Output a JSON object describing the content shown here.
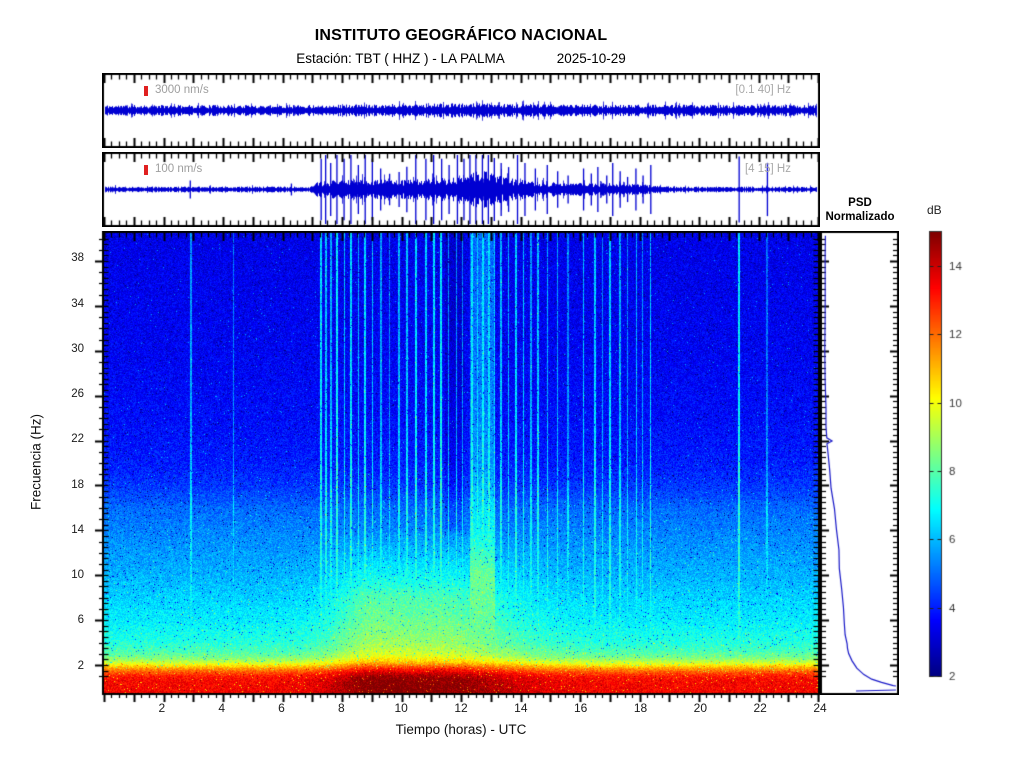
{
  "header": {
    "title": "INSTITUTO GEOGRÁFICO NACIONAL",
    "station": "Estación:  TBT ( HHZ ) - LA PALMA",
    "date": "2025-10-29"
  },
  "colors": {
    "trace_blue": "#0000d2",
    "marker_red": "#e02020",
    "axis_black": "#000000",
    "label_gray": "#9e9e9e",
    "tick_label": "#3a3a3a"
  },
  "chart_data": [
    {
      "id": "trace_broadband",
      "type": "line",
      "kind": "seismogram",
      "scale_label": "3000 nm/s",
      "filter_label": "[0.1 40] Hz",
      "x_range_hours": [
        0,
        24
      ],
      "envelope": [
        [
          0,
          0.13
        ],
        [
          7,
          0.135
        ],
        [
          9,
          0.15
        ],
        [
          11,
          0.17
        ],
        [
          13,
          0.17
        ],
        [
          14.5,
          0.15
        ],
        [
          18,
          0.14
        ],
        [
          24,
          0.13
        ]
      ],
      "spikes": []
    },
    {
      "id": "trace_filtered",
      "type": "line",
      "kind": "seismogram",
      "scale_label": "100 nm/s",
      "filter_label": "[4 15] Hz",
      "x_range_hours": [
        0,
        24
      ],
      "envelope": [
        [
          0,
          0.07
        ],
        [
          6.9,
          0.07
        ],
        [
          7.15,
          0.18
        ],
        [
          8,
          0.24
        ],
        [
          9,
          0.26
        ],
        [
          9.7,
          0.21
        ],
        [
          10.4,
          0.24
        ],
        [
          11,
          0.26
        ],
        [
          11.9,
          0.3
        ],
        [
          12.2,
          0.38
        ],
        [
          12.5,
          0.44
        ],
        [
          12.9,
          0.44
        ],
        [
          13.2,
          0.35
        ],
        [
          13.6,
          0.27
        ],
        [
          14.1,
          0.23
        ],
        [
          14.7,
          0.19
        ],
        [
          15.4,
          0.16
        ],
        [
          16.2,
          0.15
        ],
        [
          17,
          0.16
        ],
        [
          18,
          0.13
        ],
        [
          18.6,
          0.09
        ],
        [
          19.2,
          0.07
        ],
        [
          24,
          0.065
        ]
      ],
      "spikes": [
        [
          2.9,
          0.26
        ],
        [
          6.3,
          0.17
        ],
        [
          7.3,
          0.88
        ],
        [
          7.45,
          1
        ],
        [
          7.62,
          0.76
        ],
        [
          7.83,
          1
        ],
        [
          8.07,
          0.88
        ],
        [
          8.3,
          1
        ],
        [
          8.55,
          0.7
        ],
        [
          8.78,
          1
        ],
        [
          9.02,
          0.88
        ],
        [
          9.3,
          0.6
        ],
        [
          9.6,
          0.45
        ],
        [
          9.92,
          0.5
        ],
        [
          10.18,
          0.65
        ],
        [
          10.48,
          1
        ],
        [
          10.82,
          0.88
        ],
        [
          11.08,
          1
        ],
        [
          11.35,
          0.88
        ],
        [
          11.6,
          0.7
        ],
        [
          11.88,
          1
        ],
        [
          12.1,
          0.88
        ],
        [
          12.3,
          1
        ],
        [
          12.5,
          1
        ],
        [
          12.72,
          1
        ],
        [
          12.92,
          1
        ],
        [
          13.12,
          0.9
        ],
        [
          13.35,
          0.76
        ],
        [
          13.6,
          0.64
        ],
        [
          13.9,
          1
        ],
        [
          14.15,
          0.76
        ],
        [
          14.5,
          0.6
        ],
        [
          14.9,
          0.7
        ],
        [
          15.25,
          0.52
        ],
        [
          15.6,
          0.4
        ],
        [
          16.12,
          0.6
        ],
        [
          16.38,
          0.46
        ],
        [
          16.6,
          0.64
        ],
        [
          16.9,
          0.4
        ],
        [
          17.1,
          0.76
        ],
        [
          17.35,
          0.52
        ],
        [
          17.6,
          0.36
        ],
        [
          17.88,
          0.6
        ],
        [
          18.12,
          0.4
        ],
        [
          18.38,
          0.7
        ],
        [
          21.35,
          0.94
        ],
        [
          22.3,
          0.76
        ]
      ]
    },
    {
      "id": "spectrogram",
      "type": "heatmap",
      "xlabel": "Tiempo (horas) - UTC",
      "ylabel": "Frecuencia  (Hz)",
      "x_min": 0,
      "x_max": 24,
      "x_ticks": [
        2,
        4,
        6,
        8,
        10,
        12,
        14,
        16,
        18,
        20,
        22,
        24
      ],
      "y_min": -0.5,
      "y_max": 40.5,
      "y_ticks": [
        2,
        6,
        10,
        14,
        18,
        22,
        26,
        30,
        34,
        38
      ],
      "colorbar": {
        "unit": "dB",
        "min": 2,
        "max": 15,
        "ticks": [
          2,
          4,
          6,
          8,
          10,
          12,
          14
        ]
      },
      "background_db_vs_freq": [
        [
          0.2,
          13.4
        ],
        [
          0.7,
          13.3
        ],
        [
          1.0,
          13.0
        ],
        [
          1.3,
          12.4
        ],
        [
          1.6,
          11.6
        ],
        [
          1.9,
          10.6
        ],
        [
          2.1,
          9.8
        ],
        [
          2.4,
          9.0
        ],
        [
          2.8,
          8.2
        ],
        [
          3.2,
          7.8
        ],
        [
          4,
          7.3
        ],
        [
          5,
          7.0
        ],
        [
          6,
          6.7
        ],
        [
          8,
          6.3
        ],
        [
          10,
          5.9
        ],
        [
          12,
          5.6
        ],
        [
          14,
          5.3
        ],
        [
          16,
          4.95
        ],
        [
          17,
          4.6
        ],
        [
          18,
          4.3
        ],
        [
          20,
          3.95
        ],
        [
          24,
          3.7
        ],
        [
          30,
          3.5
        ],
        [
          36,
          3.4
        ],
        [
          40,
          3.35
        ]
      ],
      "event_streaks": [
        [
          2.9,
          0.06,
          2.2,
          6.8
        ],
        [
          4.35,
          0.05,
          1.8,
          6.5
        ],
        [
          7.28,
          0.06,
          3.0,
          7.2
        ],
        [
          7.45,
          0.05,
          2.6,
          7.2
        ],
        [
          7.62,
          0.05,
          2.4,
          7.0
        ],
        [
          7.83,
          0.07,
          3.2,
          7.4
        ],
        [
          8.07,
          0.05,
          2.6,
          7.1
        ],
        [
          8.3,
          0.07,
          3.0,
          7.3
        ],
        [
          8.55,
          0.05,
          2.4,
          7.0
        ],
        [
          8.78,
          0.07,
          3.0,
          7.3
        ],
        [
          9.02,
          0.05,
          2.6,
          7.1
        ],
        [
          9.3,
          0.05,
          2.2,
          6.9
        ],
        [
          9.6,
          0.04,
          1.8,
          6.6
        ],
        [
          9.92,
          0.05,
          2.4,
          7.0
        ],
        [
          10.18,
          0.05,
          2.6,
          7.1
        ],
        [
          10.48,
          0.06,
          3.0,
          7.3
        ],
        [
          10.82,
          0.06,
          2.8,
          7.2
        ],
        [
          11.08,
          0.06,
          3.0,
          7.3
        ],
        [
          11.32,
          0.07,
          3.2,
          7.4
        ],
        [
          11.58,
          0.05,
          2.4,
          7.0
        ],
        [
          11.85,
          0.05,
          2.6,
          7.1
        ],
        [
          12.05,
          0.05,
          2.4,
          7.0
        ],
        [
          12.38,
          0.06,
          3.2,
          7.5
        ],
        [
          12.55,
          0.05,
          2.8,
          7.3
        ],
        [
          12.75,
          0.06,
          3.2,
          7.5
        ],
        [
          12.95,
          0.05,
          3.0,
          7.4
        ],
        [
          13.12,
          0.05,
          2.8,
          7.3
        ],
        [
          13.35,
          0.05,
          2.6,
          7.1
        ],
        [
          13.6,
          0.05,
          2.4,
          7.0
        ],
        [
          13.85,
          0.06,
          2.8,
          7.2
        ],
        [
          14.1,
          0.05,
          2.6,
          7.1
        ],
        [
          14.35,
          0.05,
          2.2,
          6.9
        ],
        [
          14.6,
          0.05,
          2.6,
          7.1
        ],
        [
          14.92,
          0.05,
          2.4,
          7.0
        ],
        [
          15.25,
          0.05,
          2.2,
          6.9
        ],
        [
          15.6,
          0.04,
          1.8,
          6.7
        ],
        [
          16.12,
          0.05,
          2.6,
          7.1
        ],
        [
          16.5,
          0.06,
          2.8,
          7.2
        ],
        [
          16.75,
          0.04,
          2.0,
          6.8
        ],
        [
          17.02,
          0.06,
          2.8,
          7.2
        ],
        [
          17.35,
          0.05,
          2.4,
          7.0
        ],
        [
          17.6,
          0.04,
          2.0,
          6.8
        ],
        [
          17.9,
          0.05,
          2.4,
          7.0
        ],
        [
          18.12,
          0.04,
          2.0,
          6.8
        ],
        [
          18.38,
          0.06,
          2.8,
          7.2
        ],
        [
          21.35,
          0.07,
          3.2,
          7.4
        ],
        [
          22.3,
          0.04,
          1.6,
          6.5
        ]
      ],
      "broad_tremor_column": {
        "center": 12.72,
        "width": 0.85,
        "boost": 1.6,
        "cap": 8.2
      },
      "dark_column": {
        "start": 11.45,
        "end": 12.1,
        "delta": -0.45,
        "fmin": 14
      },
      "low_band_bump": {
        "gaussians": [
          [
            11.2,
            2.8,
            1.5
          ],
          [
            8.8,
            1.2,
            0.8
          ]
        ],
        "fmax": 14,
        "fscale": 6
      },
      "noise": {
        "amp": 1.3,
        "dark_prob": 0.018,
        "dark_delta": -2.2,
        "bright_prob": 0.004,
        "bright_delta": 1.5
      },
      "jet_stops": [
        [
          0,
          [
            0,
            0,
            131
          ]
        ],
        [
          0.125,
          [
            0,
            0,
            255
          ]
        ],
        [
          0.375,
          [
            0,
            255,
            255
          ]
        ],
        [
          0.625,
          [
            255,
            255,
            0
          ]
        ],
        [
          0.875,
          [
            255,
            0,
            0
          ]
        ],
        [
          1,
          [
            128,
            0,
            0
          ]
        ]
      ]
    },
    {
      "id": "psd_normalized",
      "type": "line",
      "title_line1": "PSD",
      "title_line2": "Normalizado",
      "curve_xy_frac": [
        [
          0.03,
          0.004
        ],
        [
          0.025,
          0.05
        ],
        [
          0.035,
          0.11
        ],
        [
          0.028,
          0.18
        ],
        [
          0.032,
          0.25
        ],
        [
          0.028,
          0.32
        ],
        [
          0.038,
          0.38
        ],
        [
          0.042,
          0.42
        ],
        [
          0.046,
          0.445
        ],
        [
          0.13,
          0.452
        ],
        [
          0.05,
          0.458
        ],
        [
          0.06,
          0.47
        ],
        [
          0.09,
          0.515
        ],
        [
          0.12,
          0.555
        ],
        [
          0.16,
          0.6
        ],
        [
          0.19,
          0.645
        ],
        [
          0.215,
          0.69
        ],
        [
          0.23,
          0.73
        ],
        [
          0.255,
          0.775
        ],
        [
          0.28,
          0.815
        ],
        [
          0.3,
          0.85
        ],
        [
          0.315,
          0.875
        ],
        [
          0.33,
          0.895
        ],
        [
          0.345,
          0.905
        ],
        [
          0.36,
          0.916
        ],
        [
          0.41,
          0.932
        ],
        [
          0.47,
          0.948
        ],
        [
          0.56,
          0.962
        ],
        [
          0.68,
          0.972
        ],
        [
          0.82,
          0.979
        ],
        [
          0.97,
          0.986
        ]
      ]
    }
  ]
}
